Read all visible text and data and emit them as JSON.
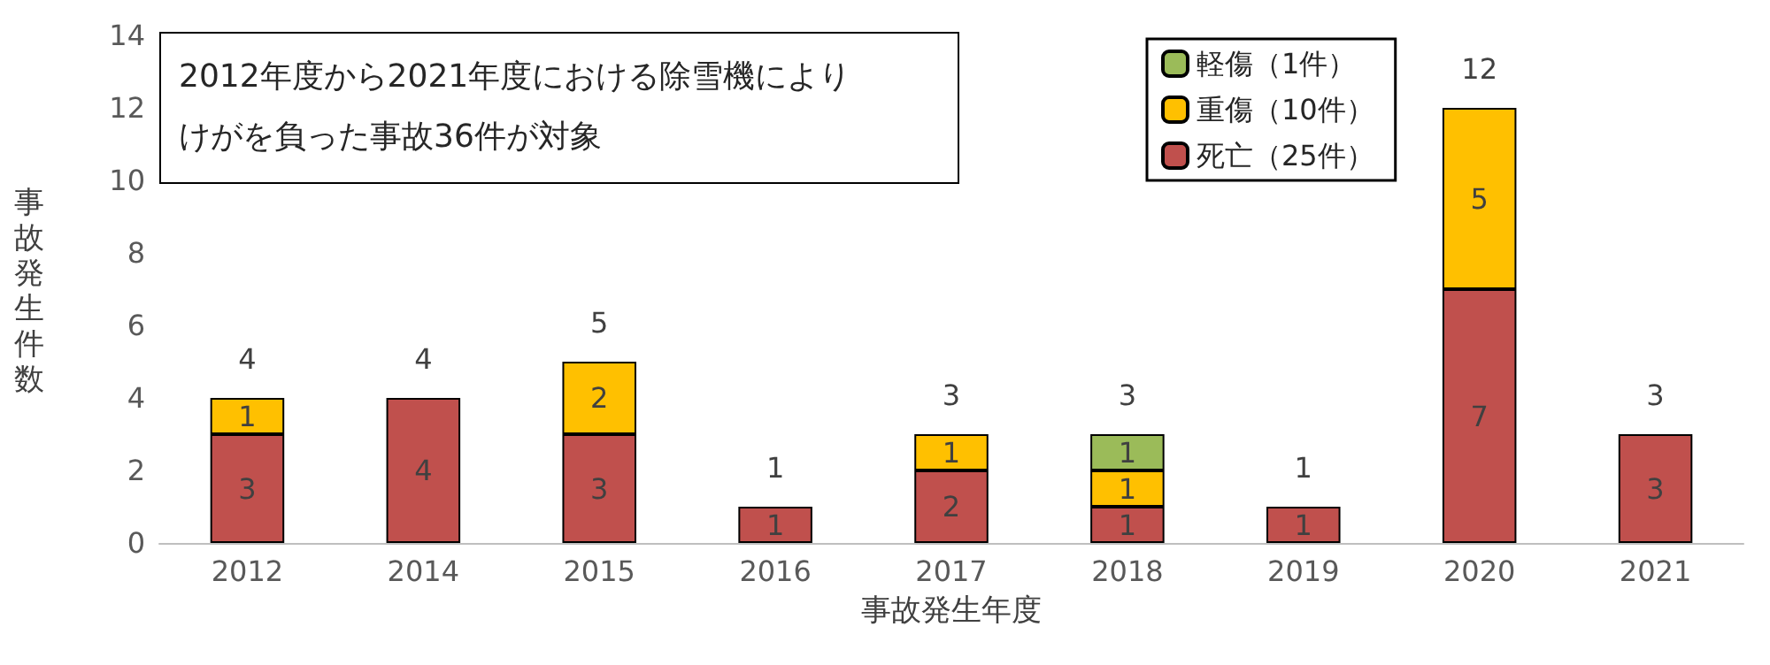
{
  "chart_data": {
    "type": "bar",
    "stacked": true,
    "xlabel": "事故発生年度",
    "ylabel": "事故発生件数",
    "annotations": [
      "2012年度から2021年度における除雪機によりけがを負った事故36件が対象"
    ],
    "categories": [
      "2012",
      "2014",
      "2015",
      "2016",
      "2017",
      "2018",
      "2019",
      "2020",
      "2021"
    ],
    "series": [
      {
        "name": "死亡（25件）",
        "color": "#c0504d",
        "values": [
          3,
          4,
          3,
          1,
          2,
          1,
          1,
          7,
          3
        ]
      },
      {
        "name": "重傷（10件）",
        "color": "#ffc000",
        "values": [
          1,
          null,
          2,
          null,
          1,
          1,
          null,
          5,
          null
        ]
      },
      {
        "name": "軽傷（1件）",
        "color": "#9bbb59",
        "values": [
          null,
          null,
          null,
          null,
          null,
          1,
          null,
          null,
          null
        ]
      }
    ],
    "totals": [
      "4",
      "4",
      "5",
      "1",
      "3",
      "3",
      "1",
      "12",
      "3"
    ],
    "ylim": [
      0,
      14
    ],
    "yticks": [
      0,
      2,
      4,
      6,
      8,
      10,
      12,
      14
    ],
    "data_labels": true,
    "grid": false,
    "legend": "top right"
  }
}
